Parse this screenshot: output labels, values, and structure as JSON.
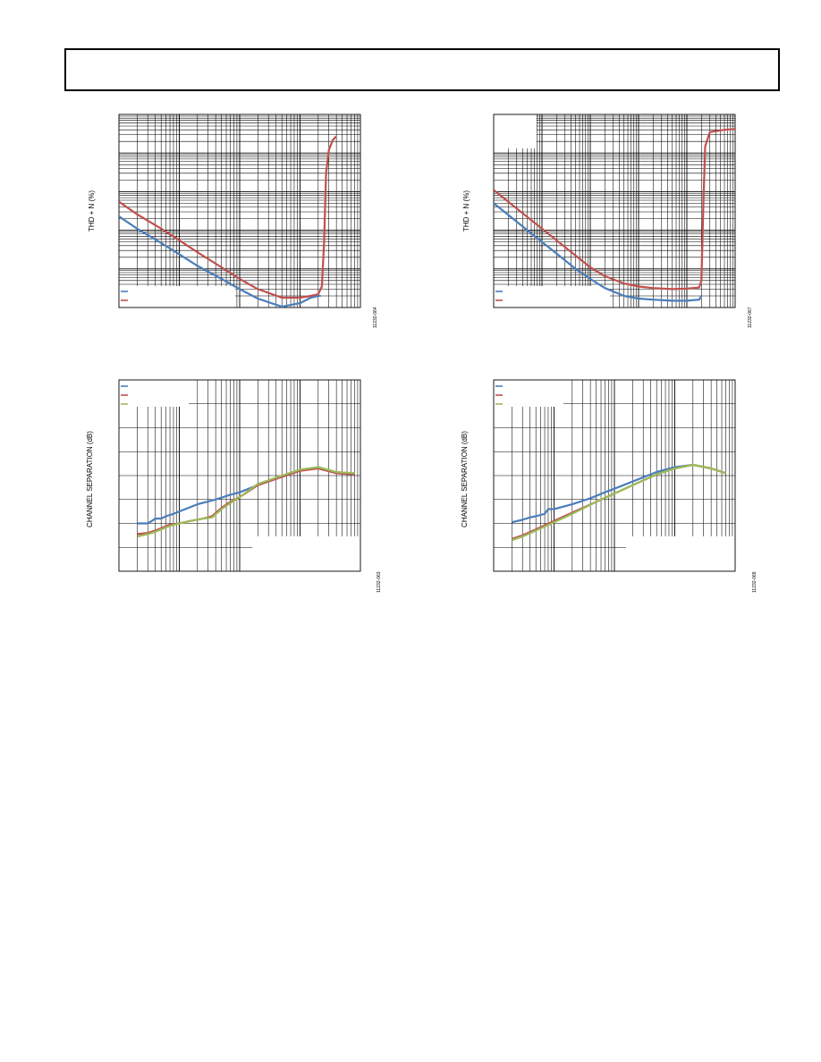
{
  "header": {
    "title": ""
  },
  "chart_data": [
    {
      "id": "thd-left",
      "type": "line",
      "ylabel": "THD + N (%)",
      "figure_id": "11232-064",
      "log_x": true,
      "log_y": true,
      "xlim": [
        0.001,
        10
      ],
      "ylim": [
        0.001,
        100
      ],
      "grid": true,
      "legend": "bottom-left",
      "series": [
        {
          "name": "",
          "color": "#4a7ebb",
          "points": [
            [
              0.001,
              0.23
            ],
            [
              0.002,
              0.11
            ],
            [
              0.005,
              0.047
            ],
            [
              0.01,
              0.024
            ],
            [
              0.02,
              0.012
            ],
            [
              0.05,
              0.0055
            ],
            [
              0.1,
              0.003
            ],
            [
              0.2,
              0.0017
            ],
            [
              0.5,
              0.00105
            ],
            [
              1.0,
              0.0013
            ],
            [
              1.5,
              0.0018
            ],
            [
              2.0,
              0.002
            ],
            [
              2.2,
              0.002
            ]
          ]
        },
        {
          "name": "",
          "color": "#c0504d",
          "points": [
            [
              0.001,
              0.55
            ],
            [
              0.002,
              0.26
            ],
            [
              0.005,
              0.11
            ],
            [
              0.01,
              0.055
            ],
            [
              0.02,
              0.027
            ],
            [
              0.05,
              0.011
            ],
            [
              0.1,
              0.0055
            ],
            [
              0.2,
              0.003
            ],
            [
              0.5,
              0.0018
            ],
            [
              1.0,
              0.0018
            ],
            [
              1.5,
              0.002
            ],
            [
              2.0,
              0.0022
            ],
            [
              2.3,
              0.0035
            ],
            [
              2.5,
              0.05
            ],
            [
              2.7,
              3
            ],
            [
              3.0,
              12
            ],
            [
              3.5,
              22
            ],
            [
              4.0,
              27
            ]
          ]
        }
      ]
    },
    {
      "id": "thd-right",
      "type": "line",
      "ylabel": "THD + N (%)",
      "figure_id": "11232-067",
      "log_x": true,
      "log_y": true,
      "xlim": [
        0.001,
        100
      ],
      "ylim": [
        0.001,
        100
      ],
      "grid": true,
      "legend": "bottom-left",
      "series": [
        {
          "name": "",
          "color": "#4a7ebb",
          "points": [
            [
              0.001,
              0.5
            ],
            [
              0.002,
              0.25
            ],
            [
              0.005,
              0.1
            ],
            [
              0.01,
              0.05
            ],
            [
              0.02,
              0.025
            ],
            [
              0.05,
              0.01
            ],
            [
              0.1,
              0.0055
            ],
            [
              0.2,
              0.0032
            ],
            [
              0.5,
              0.002
            ],
            [
              1,
              0.0017
            ],
            [
              2,
              0.0016
            ],
            [
              5,
              0.0015
            ],
            [
              10,
              0.0015
            ],
            [
              18,
              0.0016
            ],
            [
              20,
              0.002
            ]
          ]
        },
        {
          "name": "",
          "color": "#c0504d",
          "points": [
            [
              0.001,
              1.1
            ],
            [
              0.002,
              0.55
            ],
            [
              0.005,
              0.22
            ],
            [
              0.01,
              0.11
            ],
            [
              0.02,
              0.055
            ],
            [
              0.05,
              0.022
            ],
            [
              0.1,
              0.011
            ],
            [
              0.2,
              0.0065
            ],
            [
              0.5,
              0.0042
            ],
            [
              1,
              0.0035
            ],
            [
              2,
              0.0032
            ],
            [
              5,
              0.003
            ],
            [
              10,
              0.0031
            ],
            [
              18,
              0.0033
            ],
            [
              20,
              0.005
            ],
            [
              22,
              0.5
            ],
            [
              24,
              15
            ],
            [
              30,
              35
            ],
            [
              60,
              40
            ],
            [
              100,
              42
            ]
          ]
        }
      ]
    },
    {
      "id": "sep-left",
      "type": "line",
      "ylabel": "CHANNEL SEPARATION (dB)",
      "figure_id": "11232-063",
      "log_x": true,
      "xlim": [
        10,
        100000
      ],
      "ylim": [
        0,
        8
      ],
      "grid": true,
      "legend": "top-left",
      "series": [
        {
          "name": "",
          "color": "#4a7ebb",
          "points": [
            [
              20,
              2.0
            ],
            [
              30,
              2.0
            ],
            [
              35,
              2.1
            ],
            [
              40,
              2.2
            ],
            [
              50,
              2.2
            ],
            [
              60,
              2.3
            ],
            [
              80,
              2.4
            ],
            [
              100,
              2.5
            ],
            [
              200,
              2.8
            ],
            [
              400,
              3.0
            ],
            [
              700,
              3.2
            ],
            [
              1000,
              3.3
            ],
            [
              2000,
              3.6
            ],
            [
              5000,
              3.95
            ],
            [
              10000,
              4.2
            ],
            [
              20000,
              4.35
            ],
            [
              40000,
              4.1
            ],
            [
              80000,
              4.05
            ]
          ]
        },
        {
          "name": "",
          "color": "#c0504d",
          "points": [
            [
              20,
              1.55
            ],
            [
              30,
              1.6
            ],
            [
              40,
              1.7
            ],
            [
              50,
              1.8
            ],
            [
              70,
              1.95
            ],
            [
              100,
              2.0
            ],
            [
              150,
              2.1
            ],
            [
              250,
              2.2
            ],
            [
              350,
              2.3
            ],
            [
              500,
              2.65
            ],
            [
              700,
              2.9
            ],
            [
              1000,
              3.1
            ],
            [
              2000,
              3.6
            ],
            [
              5000,
              3.95
            ],
            [
              10000,
              4.2
            ],
            [
              20000,
              4.3
            ],
            [
              40000,
              4.1
            ],
            [
              80000,
              4.05
            ]
          ]
        },
        {
          "name": "",
          "color": "#9bbb59",
          "points": [
            [
              20,
              1.45
            ],
            [
              30,
              1.55
            ],
            [
              40,
              1.65
            ],
            [
              50,
              1.75
            ],
            [
              70,
              1.9
            ],
            [
              100,
              2.0
            ],
            [
              150,
              2.1
            ],
            [
              250,
              2.2
            ],
            [
              350,
              2.25
            ],
            [
              500,
              2.6
            ],
            [
              700,
              2.85
            ],
            [
              1000,
              3.1
            ],
            [
              2000,
              3.65
            ],
            [
              5000,
              4.0
            ],
            [
              10000,
              4.25
            ],
            [
              20000,
              4.35
            ],
            [
              40000,
              4.15
            ],
            [
              80000,
              4.1
            ]
          ]
        }
      ]
    },
    {
      "id": "sep-right",
      "type": "line",
      "ylabel": "CHANNEL SEPARATION (dB)",
      "figure_id": "11232-069",
      "log_x": true,
      "xlim": [
        10,
        100000
      ],
      "ylim": [
        0,
        8
      ],
      "grid": true,
      "legend": "top-left",
      "series": [
        {
          "name": "",
          "color": "#4a7ebb",
          "points": [
            [
              20,
              2.05
            ],
            [
              30,
              2.15
            ],
            [
              40,
              2.25
            ],
            [
              50,
              2.3
            ],
            [
              70,
              2.4
            ],
            [
              80,
              2.6
            ],
            [
              100,
              2.6
            ],
            [
              200,
              2.8
            ],
            [
              400,
              3.05
            ],
            [
              700,
              3.3
            ],
            [
              1000,
              3.45
            ],
            [
              2000,
              3.75
            ],
            [
              5000,
              4.15
            ],
            [
              10000,
              4.35
            ],
            [
              20000,
              4.45
            ],
            [
              40000,
              4.3
            ],
            [
              70000,
              4.1
            ]
          ]
        },
        {
          "name": "",
          "color": "#c0504d",
          "points": [
            [
              20,
              1.35
            ],
            [
              30,
              1.5
            ],
            [
              50,
              1.75
            ],
            [
              100,
              2.1
            ],
            [
              200,
              2.45
            ],
            [
              500,
              2.9
            ],
            [
              1000,
              3.25
            ],
            [
              2000,
              3.6
            ],
            [
              5000,
              4.05
            ],
            [
              10000,
              4.3
            ],
            [
              20000,
              4.45
            ],
            [
              40000,
              4.3
            ],
            [
              70000,
              4.1
            ]
          ]
        },
        {
          "name": "",
          "color": "#9bbb59",
          "points": [
            [
              20,
              1.3
            ],
            [
              30,
              1.45
            ],
            [
              50,
              1.7
            ],
            [
              100,
              2.05
            ],
            [
              200,
              2.4
            ],
            [
              500,
              2.9
            ],
            [
              1000,
              3.25
            ],
            [
              2000,
              3.6
            ],
            [
              5000,
              4.05
            ],
            [
              10000,
              4.3
            ],
            [
              20000,
              4.45
            ],
            [
              40000,
              4.3
            ],
            [
              70000,
              4.1
            ]
          ]
        }
      ]
    }
  ]
}
